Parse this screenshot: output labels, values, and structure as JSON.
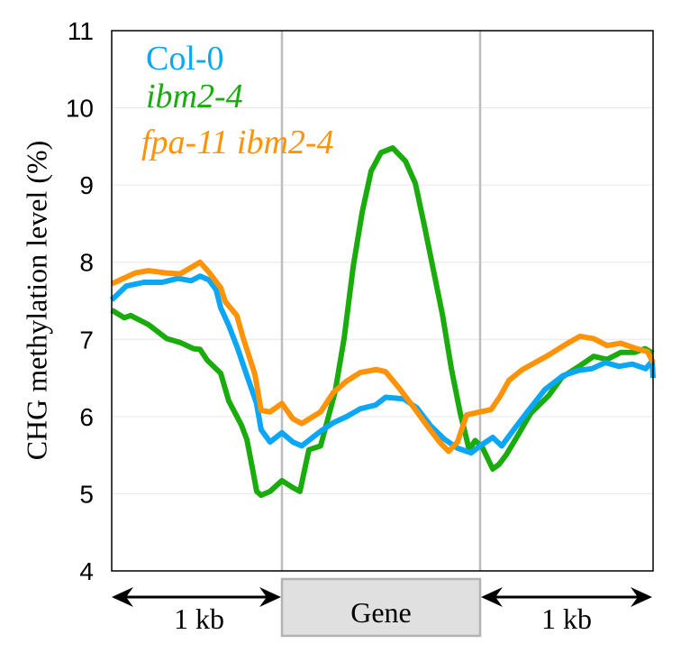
{
  "chart_data": {
    "type": "line",
    "title": "",
    "xlabel": "",
    "ylabel": "CHG methylation level (%)",
    "ylim": [
      4,
      11
    ],
    "yticks": [
      "4",
      "5",
      "6",
      "7",
      "8",
      "9",
      "10",
      "11"
    ],
    "grid": true,
    "legend_position": "top-left",
    "regions": {
      "upstream_label": "1 kb",
      "gene_label": "Gene",
      "downstream_label": "1 kb"
    },
    "x_note": "x in bins: 0-100 upstream 1 kb, 100-200 gene body, 200-300 downstream 1 kb",
    "series": [
      {
        "name": "Col-0",
        "color": "#0ba6f6",
        "italic": false,
        "points": [
          [
            0,
            7.51
          ],
          [
            8.5,
            7.69
          ],
          [
            19,
            7.74
          ],
          [
            29.6,
            7.74
          ],
          [
            39,
            7.79
          ],
          [
            46.6,
            7.76
          ],
          [
            51.9,
            7.82
          ],
          [
            57.1,
            7.77
          ],
          [
            61.4,
            7.64
          ],
          [
            64,
            7.41
          ],
          [
            68.8,
            7.18
          ],
          [
            74,
            6.88
          ],
          [
            79.4,
            6.53
          ],
          [
            85,
            6.18
          ],
          [
            87.8,
            5.83
          ],
          [
            93,
            5.67
          ],
          [
            100,
            5.79
          ],
          [
            105.5,
            5.67
          ],
          [
            110,
            5.62
          ],
          [
            119.5,
            5.81
          ],
          [
            125.9,
            5.92
          ],
          [
            132.7,
            6.0
          ],
          [
            139.5,
            6.1
          ],
          [
            147.3,
            6.15
          ],
          [
            152.3,
            6.25
          ],
          [
            161.4,
            6.23
          ],
          [
            168.2,
            6.11
          ],
          [
            175,
            5.88
          ],
          [
            181.8,
            5.71
          ],
          [
            188.6,
            5.59
          ],
          [
            195.5,
            5.53
          ],
          [
            200,
            5.62
          ],
          [
            207.3,
            5.73
          ],
          [
            212.5,
            5.62
          ],
          [
            218.8,
            5.81
          ],
          [
            227.6,
            6.07
          ],
          [
            237.5,
            6.35
          ],
          [
            247.9,
            6.53
          ],
          [
            257.3,
            6.6
          ],
          [
            264.6,
            6.62
          ],
          [
            272.4,
            6.7
          ],
          [
            280.2,
            6.65
          ],
          [
            288,
            6.68
          ],
          [
            295.8,
            6.62
          ],
          [
            299.5,
            6.72
          ],
          [
            300,
            6.5
          ]
        ]
      },
      {
        "name": "ibm2-4",
        "color": "#1aab0c",
        "italic": true,
        "points": [
          [
            0,
            7.38
          ],
          [
            7.4,
            7.28
          ],
          [
            11.1,
            7.31
          ],
          [
            21.7,
            7.19
          ],
          [
            32.3,
            7.01
          ],
          [
            40.2,
            6.96
          ],
          [
            48.1,
            6.88
          ],
          [
            51.9,
            6.87
          ],
          [
            56.1,
            6.73
          ],
          [
            64,
            6.56
          ],
          [
            68.8,
            6.2
          ],
          [
            76.2,
            5.89
          ],
          [
            79.4,
            5.7
          ],
          [
            82.5,
            5.35
          ],
          [
            85.2,
            5.03
          ],
          [
            87.8,
            4.98
          ],
          [
            93,
            5.03
          ],
          [
            100,
            5.17
          ],
          [
            105.5,
            5.08
          ],
          [
            109.1,
            5.03
          ],
          [
            113.6,
            5.57
          ],
          [
            119.5,
            5.62
          ],
          [
            126.8,
            6.32
          ],
          [
            131.4,
            7.02
          ],
          [
            136,
            7.95
          ],
          [
            140.5,
            8.65
          ],
          [
            145,
            9.18
          ],
          [
            150,
            9.42
          ],
          [
            155.9,
            9.48
          ],
          [
            162.3,
            9.31
          ],
          [
            167.3,
            9.02
          ],
          [
            171.8,
            8.48
          ],
          [
            176.4,
            7.9
          ],
          [
            181,
            7.32
          ],
          [
            185.5,
            6.62
          ],
          [
            190,
            6.04
          ],
          [
            194.5,
            5.57
          ],
          [
            197.5,
            5.69
          ],
          [
            201.3,
            5.6
          ],
          [
            207.3,
            5.32
          ],
          [
            210.9,
            5.38
          ],
          [
            215,
            5.5
          ],
          [
            221.4,
            5.74
          ],
          [
            229.2,
            6.04
          ],
          [
            239.6,
            6.27
          ],
          [
            247.4,
            6.51
          ],
          [
            257.8,
            6.66
          ],
          [
            265.6,
            6.78
          ],
          [
            273.4,
            6.74
          ],
          [
            281.3,
            6.83
          ],
          [
            289.1,
            6.83
          ],
          [
            295.3,
            6.88
          ],
          [
            300,
            6.82
          ]
        ]
      },
      {
        "name": "fpa-11 ibm2-4",
        "color": "#ff9307",
        "italic": true,
        "points": [
          [
            0,
            7.72
          ],
          [
            13.8,
            7.86
          ],
          [
            21.7,
            7.89
          ],
          [
            32.3,
            7.86
          ],
          [
            40.2,
            7.85
          ],
          [
            48.1,
            7.95
          ],
          [
            51.9,
            8.0
          ],
          [
            57.1,
            7.87
          ],
          [
            64,
            7.67
          ],
          [
            66.7,
            7.49
          ],
          [
            73.5,
            7.31
          ],
          [
            77.2,
            7.02
          ],
          [
            84.1,
            6.55
          ],
          [
            87.8,
            6.08
          ],
          [
            93,
            6.06
          ],
          [
            100,
            6.17
          ],
          [
            105.5,
            5.97
          ],
          [
            110,
            5.91
          ],
          [
            119.5,
            6.06
          ],
          [
            125.9,
            6.31
          ],
          [
            132.7,
            6.46
          ],
          [
            139.5,
            6.57
          ],
          [
            147.7,
            6.61
          ],
          [
            152.3,
            6.58
          ],
          [
            159.1,
            6.37
          ],
          [
            165.9,
            6.14
          ],
          [
            172.7,
            5.9
          ],
          [
            179.5,
            5.67
          ],
          [
            184.1,
            5.55
          ],
          [
            188.6,
            5.67
          ],
          [
            193.2,
            6.02
          ],
          [
            200,
            6.06
          ],
          [
            206.3,
            6.09
          ],
          [
            211.5,
            6.26
          ],
          [
            216.7,
            6.47
          ],
          [
            224.5,
            6.61
          ],
          [
            239.1,
            6.79
          ],
          [
            250.5,
            6.95
          ],
          [
            257.8,
            7.04
          ],
          [
            265.6,
            7.01
          ],
          [
            273.4,
            6.92
          ],
          [
            281.3,
            6.95
          ],
          [
            289.1,
            6.89
          ],
          [
            296.9,
            6.84
          ],
          [
            300,
            6.7
          ]
        ]
      }
    ]
  }
}
